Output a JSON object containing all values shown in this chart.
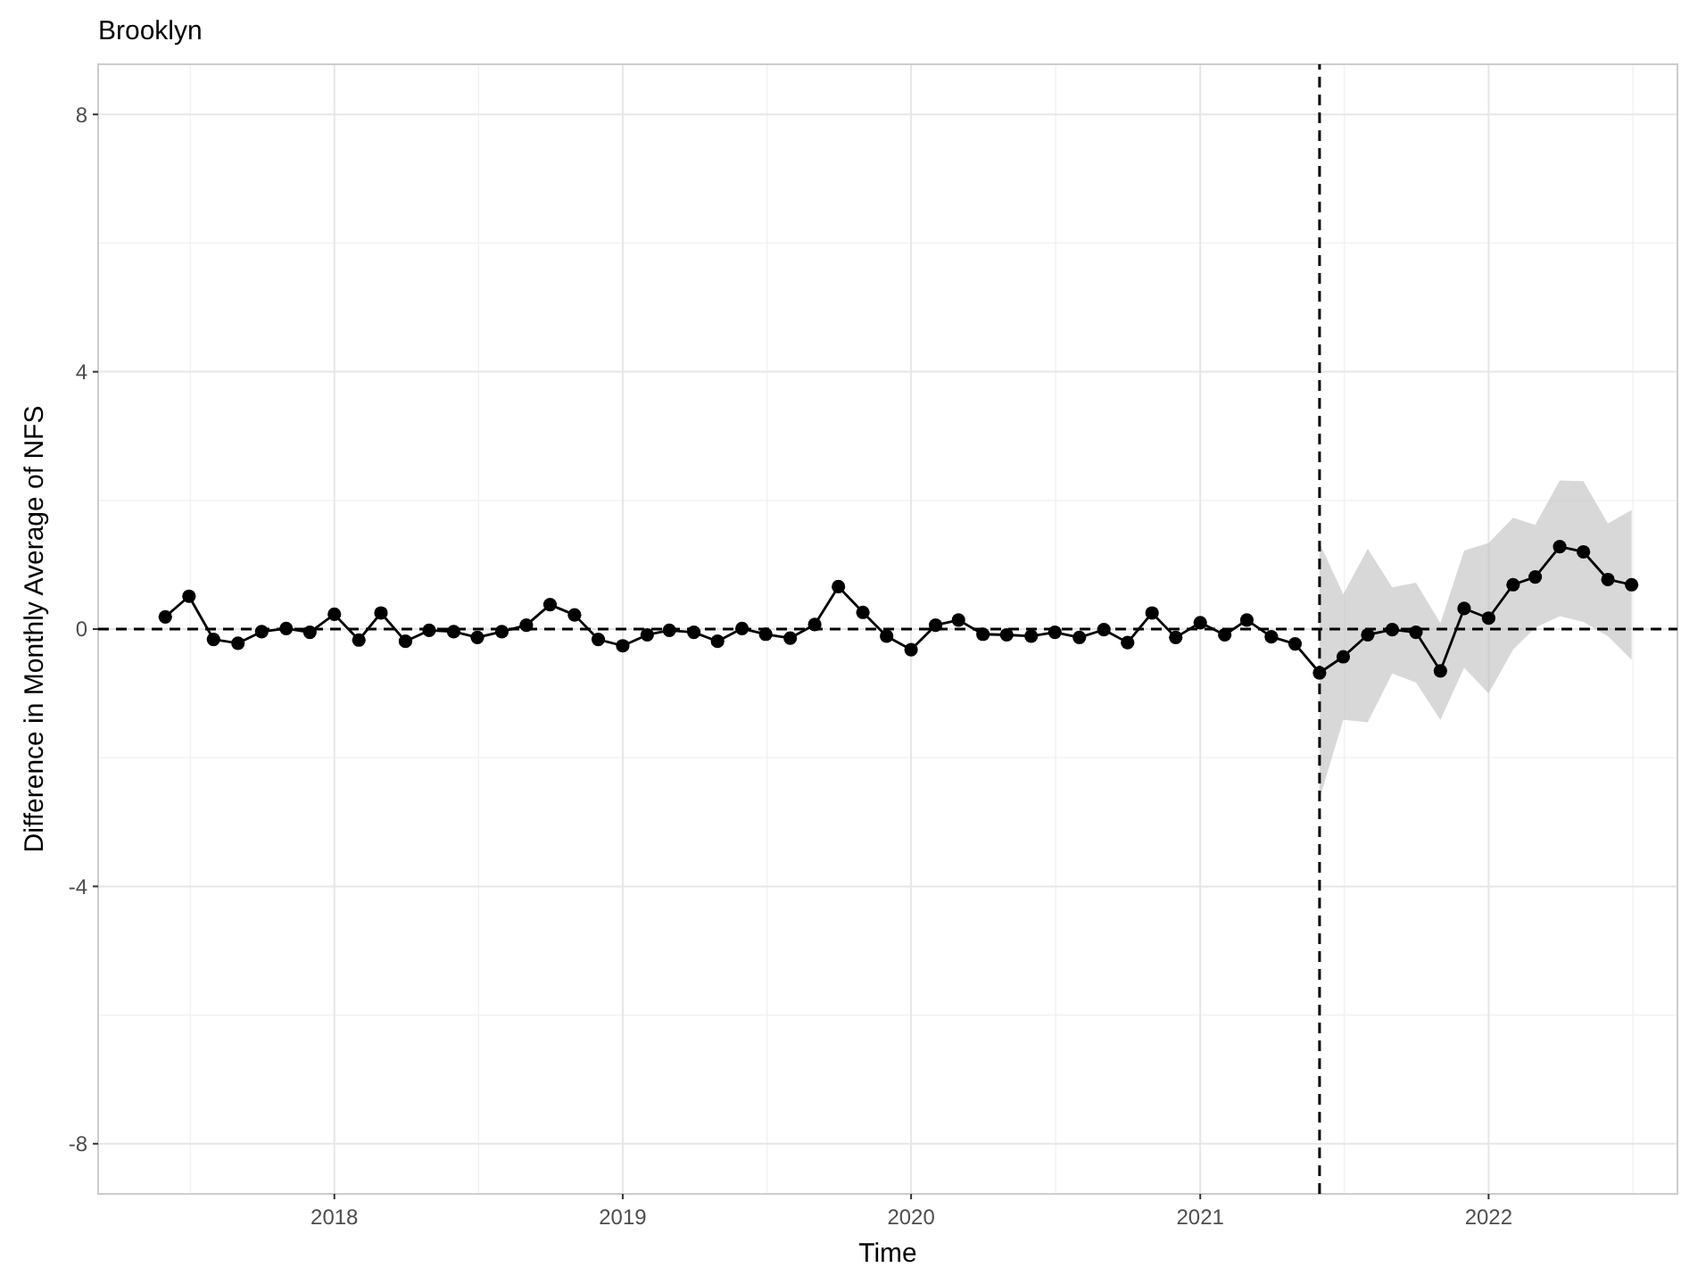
{
  "chart_data": {
    "type": "line",
    "title": "Brooklyn",
    "xlabel": "Time",
    "ylabel": "Difference in Monthly Average of NFS",
    "x": [
      "2017-06",
      "2017-07",
      "2017-08",
      "2017-09",
      "2017-10",
      "2017-11",
      "2017-12",
      "2018-01",
      "2018-02",
      "2018-03",
      "2018-04",
      "2018-05",
      "2018-06",
      "2018-07",
      "2018-08",
      "2018-09",
      "2018-10",
      "2018-11",
      "2018-12",
      "2019-01",
      "2019-02",
      "2019-03",
      "2019-04",
      "2019-05",
      "2019-06",
      "2019-07",
      "2019-08",
      "2019-09",
      "2019-10",
      "2019-11",
      "2019-12",
      "2020-01",
      "2020-02",
      "2020-03",
      "2020-04",
      "2020-05",
      "2020-06",
      "2020-07",
      "2020-08",
      "2020-09",
      "2020-10",
      "2020-11",
      "2020-12",
      "2021-01",
      "2021-02",
      "2021-03",
      "2021-04",
      "2021-05",
      "2021-06",
      "2021-07",
      "2021-08",
      "2021-09",
      "2021-10",
      "2021-11",
      "2021-12",
      "2022-01",
      "2022-02",
      "2022-03",
      "2022-04",
      "2022-05",
      "2022-06",
      "2022-07"
    ],
    "series": [
      {
        "color": "#000000",
        "values": [
          0.19,
          0.51,
          -0.16,
          -0.22,
          -0.04,
          0.01,
          -0.05,
          0.23,
          -0.17,
          0.25,
          -0.19,
          -0.02,
          -0.04,
          -0.13,
          -0.04,
          0.06,
          0.38,
          0.22,
          -0.16,
          -0.26,
          -0.09,
          -0.02,
          -0.05,
          -0.19,
          0.01,
          -0.08,
          -0.14,
          0.07,
          0.66,
          0.26,
          -0.11,
          -0.32,
          0.06,
          0.14,
          -0.08,
          -0.09,
          -0.11,
          -0.05,
          -0.13,
          -0.01,
          -0.21,
          0.25,
          -0.13,
          0.1,
          -0.09,
          0.14,
          -0.12,
          -0.23,
          -0.68,
          -0.43,
          -0.09,
          -0.01,
          -0.05,
          -0.65,
          0.32,
          0.17,
          0.69,
          0.81,
          1.28,
          1.2,
          0.77,
          0.69
        ],
        "lower": [
          null,
          null,
          null,
          null,
          null,
          null,
          null,
          null,
          null,
          null,
          null,
          null,
          null,
          null,
          null,
          null,
          null,
          null,
          null,
          null,
          null,
          null,
          null,
          null,
          null,
          null,
          null,
          null,
          null,
          null,
          null,
          null,
          null,
          null,
          null,
          null,
          null,
          null,
          null,
          null,
          null,
          null,
          null,
          null,
          null,
          null,
          null,
          null,
          -2.64,
          -1.41,
          -1.45,
          -0.69,
          -0.83,
          -1.41,
          -0.6,
          -1.0,
          -0.32,
          0.02,
          0.2,
          0.11,
          -0.11,
          -0.48
        ],
        "upper": [
          null,
          null,
          null,
          null,
          null,
          null,
          null,
          null,
          null,
          null,
          null,
          null,
          null,
          null,
          null,
          null,
          null,
          null,
          null,
          null,
          null,
          null,
          null,
          null,
          null,
          null,
          null,
          null,
          null,
          null,
          null,
          null,
          null,
          null,
          null,
          null,
          null,
          null,
          null,
          null,
          null,
          null,
          null,
          null,
          null,
          null,
          null,
          null,
          1.34,
          0.54,
          1.25,
          0.65,
          0.72,
          0.09,
          1.22,
          1.34,
          1.73,
          1.62,
          2.31,
          2.3,
          1.64,
          1.85
        ]
      }
    ],
    "xlim": [
      "2017-03-08",
      "2022-08-28"
    ],
    "xticks": [
      {
        "value": "2018-01-01",
        "label": "2018"
      },
      {
        "value": "2019-01-01",
        "label": "2019"
      },
      {
        "value": "2020-01-01",
        "label": "2020"
      },
      {
        "value": "2021-01-01",
        "label": "2021"
      },
      {
        "value": "2022-01-01",
        "label": "2022"
      }
    ],
    "ylim": [
      -8.78,
      8.78
    ],
    "yticks": [
      -8,
      -4,
      0,
      4,
      8
    ],
    "ref_lines": [
      {
        "axis": "y",
        "value": 0,
        "line_style": "dashed",
        "color": "#000000"
      },
      {
        "axis": "x",
        "value": "2021-06",
        "line_style": "dashed",
        "color": "#000000"
      }
    ],
    "grid": true,
    "marker": "circle",
    "line_style": "solid"
  }
}
